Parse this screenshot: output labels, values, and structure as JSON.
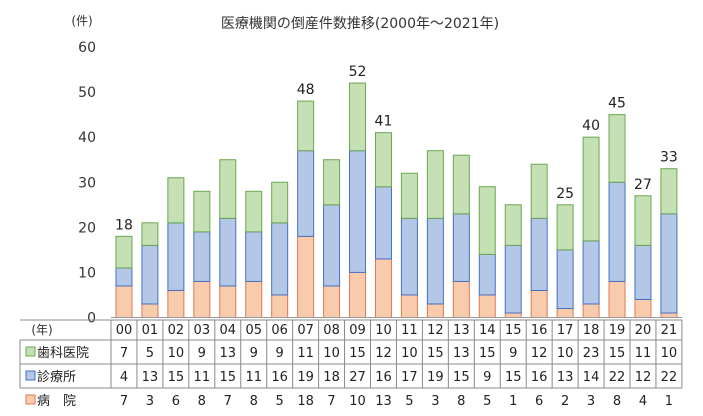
{
  "chart_data": {
    "type": "bar",
    "stacked": true,
    "title": "医療機関の倒産件数推移(2000年～2021年)",
    "ylabel": "(件)",
    "xlabel": "(年)",
    "ylim": [
      0,
      60
    ],
    "yticks": [
      0,
      10,
      20,
      30,
      40,
      50,
      60
    ],
    "grid": false,
    "categories": [
      "00",
      "01",
      "02",
      "03",
      "04",
      "05",
      "06",
      "07",
      "08",
      "09",
      "10",
      "11",
      "12",
      "13",
      "14",
      "15",
      "16",
      "17",
      "18",
      "19",
      "20",
      "21"
    ],
    "series": [
      {
        "name": "病　院",
        "color": "#f8cbad",
        "border": "#e07a4f",
        "values": [
          7,
          3,
          6,
          8,
          7,
          8,
          5,
          18,
          7,
          10,
          13,
          5,
          3,
          8,
          5,
          1,
          6,
          2,
          3,
          8,
          4,
          1
        ]
      },
      {
        "name": "診療所",
        "color": "#b4c7e7",
        "border": "#4472c4",
        "values": [
          4,
          13,
          15,
          11,
          15,
          11,
          16,
          19,
          18,
          27,
          16,
          17,
          19,
          15,
          9,
          15,
          16,
          13,
          14,
          22,
          12,
          22
        ]
      },
      {
        "name": "歯科医院",
        "color": "#c5e0b4",
        "border": "#6aa84f",
        "values": [
          7,
          5,
          10,
          9,
          13,
          9,
          9,
          11,
          10,
          15,
          12,
          10,
          15,
          13,
          15,
          9,
          12,
          10,
          23,
          15,
          11,
          10
        ]
      }
    ],
    "table_rows": [
      "歯科医院",
      "診療所",
      "病　院"
    ],
    "labeled_totals": {
      "00": "18",
      "07": "48",
      "09": "52",
      "10": "41",
      "17": "25",
      "18": "40",
      "19": "45",
      "20": "27",
      "21": "33"
    }
  }
}
